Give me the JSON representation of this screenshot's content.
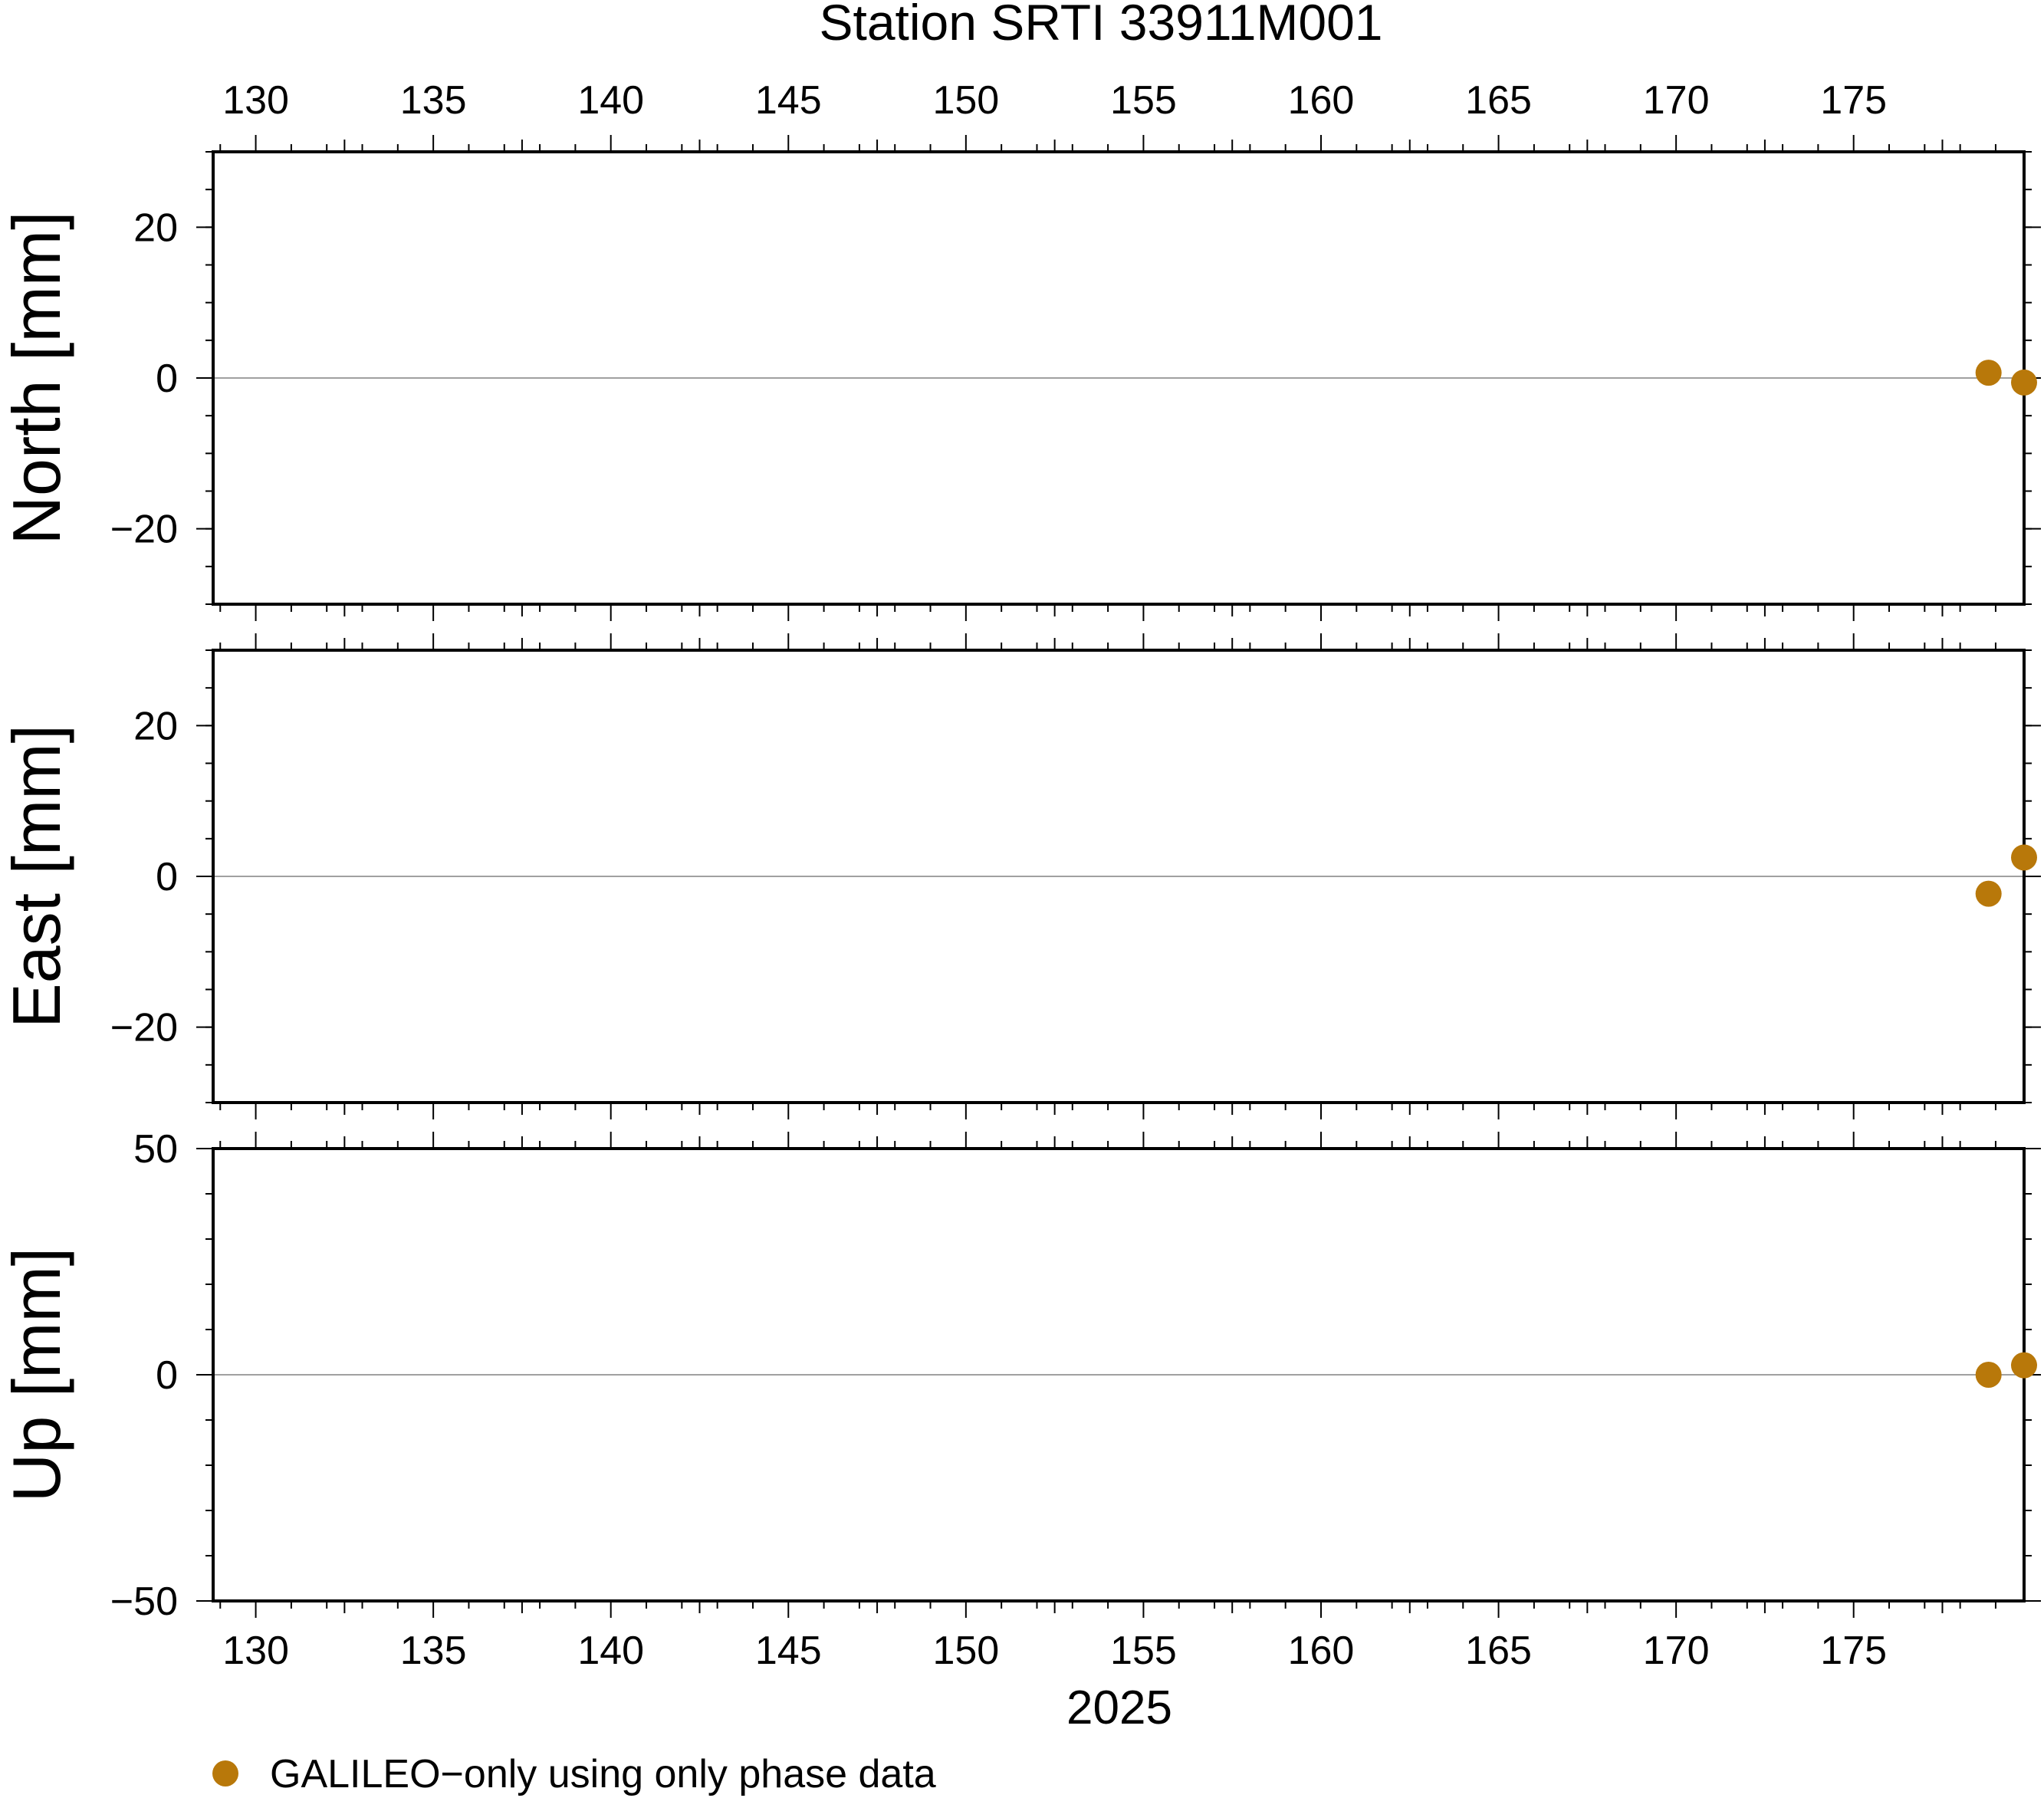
{
  "title": "Station SRTI 33911M001",
  "xlabel": "2025",
  "legend": {
    "label": "GALILEO−only using only phase data",
    "marker_color": "#b8780a"
  },
  "colors": {
    "marker": "#b8780a",
    "zero_line": "#808080",
    "axis": "#000000"
  },
  "chart_data": [
    {
      "type": "scatter",
      "panel": "North",
      "ylabel": "North [mm]",
      "xlim": [
        128.8,
        179.8
      ],
      "ylim": [
        -30,
        30
      ],
      "x_ticks": [
        130,
        135,
        140,
        145,
        150,
        155,
        160,
        165,
        170,
        175
      ],
      "y_ticks": [
        -20,
        0,
        20
      ],
      "y_minor_step": 5,
      "zero_line": true,
      "series": [
        {
          "name": "GALILEO−only using only phase data",
          "points": [
            {
              "x": 178.8,
              "y": 0.7
            },
            {
              "x": 179.8,
              "y": -0.6
            }
          ]
        }
      ]
    },
    {
      "type": "scatter",
      "panel": "East",
      "ylabel": "East [mm]",
      "xlim": [
        128.8,
        179.8
      ],
      "ylim": [
        -30,
        30
      ],
      "x_ticks": [
        130,
        135,
        140,
        145,
        150,
        155,
        160,
        165,
        170,
        175
      ],
      "y_ticks": [
        -20,
        0,
        20
      ],
      "y_minor_step": 5,
      "zero_line": true,
      "series": [
        {
          "name": "GALILEO−only using only phase data",
          "points": [
            {
              "x": 178.8,
              "y": -2.3
            },
            {
              "x": 179.8,
              "y": 2.5
            }
          ]
        }
      ]
    },
    {
      "type": "scatter",
      "panel": "Up",
      "ylabel": "Up [mm]",
      "xlim": [
        128.8,
        179.8
      ],
      "ylim": [
        -50,
        50
      ],
      "x_ticks": [
        130,
        135,
        140,
        145,
        150,
        155,
        160,
        165,
        170,
        175
      ],
      "y_ticks": [
        -50,
        0,
        50
      ],
      "y_minor_step": 10,
      "zero_line": true,
      "series": [
        {
          "name": "GALILEO−only using only phase data",
          "points": [
            {
              "x": 178.8,
              "y": 0.0
            },
            {
              "x": 179.8,
              "y": 2.1
            }
          ]
        }
      ]
    }
  ]
}
